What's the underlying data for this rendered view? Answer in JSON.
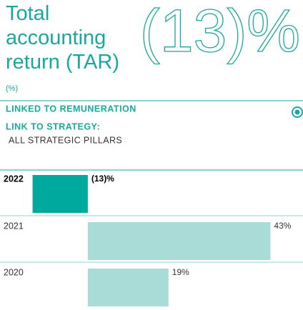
{
  "chart_data": {
    "type": "bar",
    "orientation": "horizontal",
    "title": "Total accounting return (TAR)",
    "subtitle": "(%)",
    "headline": "(13)%",
    "annotations": [
      "LINKED TO REMUNERATION",
      "LINK TO STRATEGY:",
      "ALL STRATEGIC PILLARS"
    ],
    "categories": [
      "2022",
      "2021",
      "2020"
    ],
    "values": [
      -13,
      43,
      19
    ],
    "value_labels": [
      "(13)%",
      "43%",
      "19%"
    ],
    "colors": [
      "#00a99d",
      "#a9dbd7",
      "#a9dbd7"
    ],
    "xlim": [
      -20,
      50
    ]
  }
}
